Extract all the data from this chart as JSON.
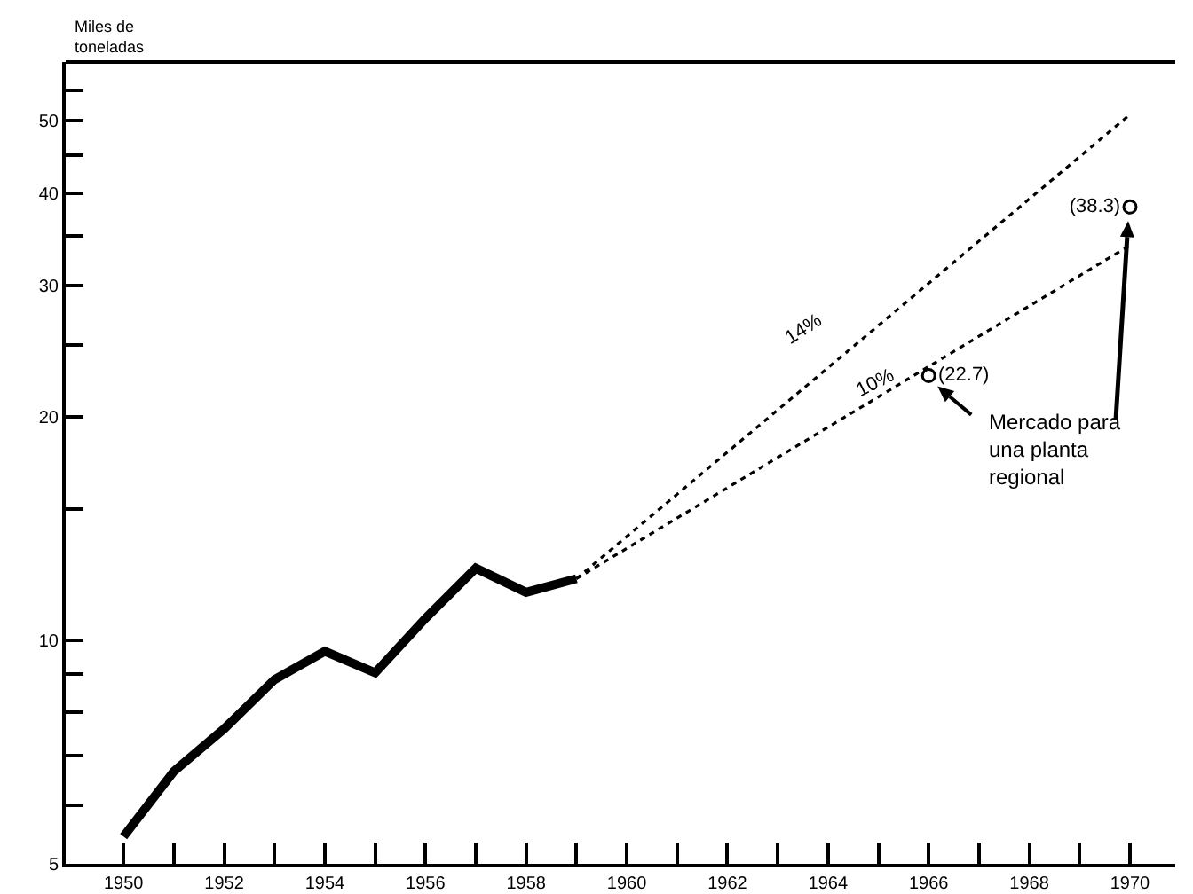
{
  "chart_data": {
    "type": "line",
    "ylabel": "Miles de toneladas",
    "log": "y",
    "grid": false,
    "xlim": [
      1948.85,
      1970.9
    ],
    "xticks": [
      1950,
      {
        "value": 1951,
        "label": null
      },
      1952,
      {
        "value": 1953,
        "label": null
      },
      1954,
      {
        "value": 1955,
        "label": null
      },
      1956,
      {
        "value": 1957,
        "label": null
      },
      1958,
      {
        "value": 1959,
        "label": null
      },
      1960,
      {
        "value": 1961,
        "label": null
      },
      1962,
      {
        "value": 1963,
        "label": null
      },
      1964,
      {
        "value": 1965,
        "label": null
      },
      1966,
      {
        "value": 1967,
        "label": null
      },
      1968,
      {
        "value": 1969,
        "label": null
      },
      1970
    ],
    "ylim": [
      5,
      60
    ],
    "yticks": [
      5,
      {
        "value": 6,
        "label": null
      },
      {
        "value": 7,
        "label": null
      },
      {
        "value": 8,
        "label": null
      },
      {
        "value": 9,
        "label": null
      },
      10,
      {
        "value": 15,
        "label": null
      },
      20,
      {
        "value": 25,
        "label": null
      },
      30,
      {
        "value": 35,
        "label": null
      },
      40,
      {
        "value": 45,
        "label": null
      },
      50,
      {
        "value": 55,
        "label": null
      }
    ],
    "series": [
      {
        "color": "#000000",
        "line_style": "solid",
        "marker": "none",
        "x": [
          1950,
          1951,
          1952,
          1953,
          1954,
          1955,
          1956,
          1957,
          1958,
          1959
        ],
        "values": [
          5.44,
          6.66,
          7.6,
          8.85,
          9.66,
          9.04,
          10.7,
          12.5,
          11.6,
          12.1
        ]
      },
      {
        "color": "#000000",
        "line_style": "dotted",
        "marker": "none",
        "x": [
          1959,
          1970
        ],
        "values": [
          12.1,
          51
        ]
      },
      {
        "color": "#000000",
        "line_style": "dotted",
        "marker": "none",
        "x": [
          1959,
          1970
        ],
        "values": [
          12.1,
          34
        ]
      },
      {
        "type": "scatter",
        "color": "#000000",
        "marker": "circle",
        "x": [
          1966,
          1970
        ],
        "values": [
          22.7,
          38.3
        ],
        "value_labels": [
          "(22.7)",
          "(38.3)"
        ]
      }
    ],
    "annotations": [
      "14%",
      "10%",
      "Mercado para una planta regional"
    ]
  }
}
